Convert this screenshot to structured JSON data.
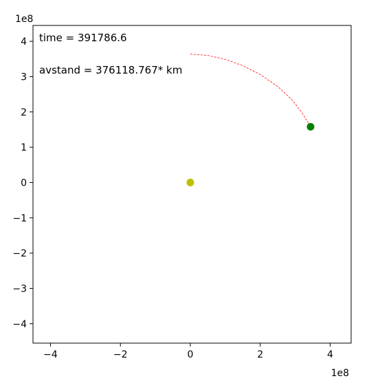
{
  "chart_data": {
    "type": "scatter",
    "title": "",
    "xlabel": "",
    "ylabel": "",
    "x_offset_label": "1e8",
    "y_offset_label": "1e8",
    "xlim": [
      -4.5,
      4.6
    ],
    "ylim": [
      -4.55,
      4.45
    ],
    "xticks": [
      {
        "value": -4,
        "label": "−4"
      },
      {
        "value": -2,
        "label": "−2"
      },
      {
        "value": 0,
        "label": "0"
      },
      {
        "value": 2,
        "label": "2"
      },
      {
        "value": 4,
        "label": "4"
      }
    ],
    "yticks": [
      {
        "value": -4,
        "label": "−4"
      },
      {
        "value": -3,
        "label": "−3"
      },
      {
        "value": -2,
        "label": "−2"
      },
      {
        "value": -1,
        "label": "−1"
      },
      {
        "value": 0,
        "label": "0"
      },
      {
        "value": 1,
        "label": "1"
      },
      {
        "value": 2,
        "label": "2"
      },
      {
        "value": 3,
        "label": "3"
      },
      {
        "value": 4,
        "label": "4"
      }
    ],
    "grid": false,
    "legend": "none",
    "annotations": {
      "time": "time = 391786.6",
      "distance": "avstand = 376118.767* km"
    },
    "bodies": [
      {
        "x": 0,
        "y": 0,
        "color": "#bfbf00"
      },
      {
        "x": 3.44,
        "y": 1.58,
        "color": "#008000"
      }
    ],
    "trail": {
      "color": "#ff0000",
      "style": "dashed",
      "x": [
        0.0,
        0.5,
        1.0,
        1.5,
        2.0,
        2.5,
        2.9,
        3.2,
        3.44
      ],
      "y": [
        3.64,
        3.6,
        3.49,
        3.31,
        3.06,
        2.72,
        2.35,
        1.97,
        1.58
      ]
    }
  }
}
